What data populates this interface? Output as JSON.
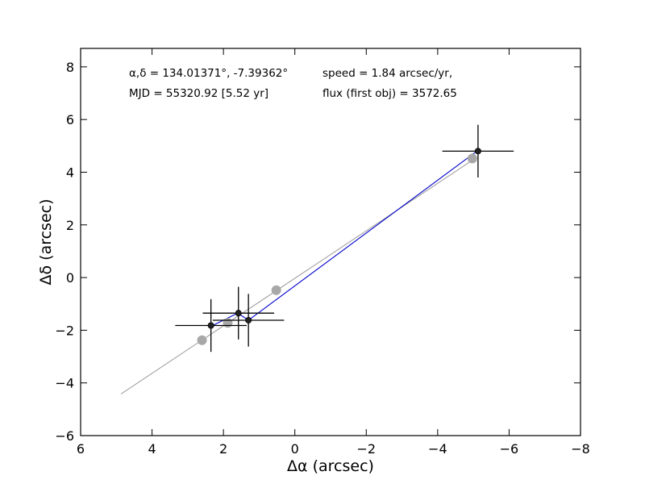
{
  "chart_data": {
    "type": "scatter",
    "title": "",
    "xlabel": "Δα (arcsec)",
    "ylabel": "Δδ (arcsec)",
    "xlim": [
      6,
      -8
    ],
    "ylim": [
      -6,
      8.7
    ],
    "xticks": [
      6,
      4,
      2,
      0,
      -2,
      -4,
      -6,
      -8
    ],
    "xtick_labels": [
      "6",
      "4",
      "2",
      "0",
      "−2",
      "−4",
      "−6",
      "−8"
    ],
    "yticks": [
      -6,
      -4,
      -2,
      0,
      2,
      4,
      6,
      8
    ],
    "ytick_labels": [
      "−6",
      "−4",
      "−2",
      "0",
      "2",
      "4",
      "6",
      "8"
    ],
    "grid": false,
    "legend": "none",
    "annotations": {
      "coords": "α,δ = 134.01371°, -7.39362°",
      "mjd": "MJD = 55320.92 [5.52 yr]",
      "speed": "speed = 1.84 arcsec/yr,",
      "flux": "flux (first obj) = 3572.65"
    },
    "fit_line": {
      "color": "#a0a0a0",
      "x": [
        4.87,
        -5.0
      ],
      "y": [
        -4.42,
        4.48
      ]
    },
    "model_points": {
      "color": "#a8a8a8",
      "x": [
        2.6,
        1.88,
        0.52,
        -4.97
      ],
      "y": [
        -2.38,
        -1.72,
        -0.48,
        4.52
      ]
    },
    "path_line": {
      "color": "#0000cc",
      "x": [
        2.3,
        1.6,
        1.3,
        -5.1
      ],
      "y": [
        -1.82,
        -1.35,
        -1.62,
        4.8
      ]
    },
    "observations": {
      "color": "#222222",
      "points": [
        {
          "x": 2.35,
          "y": -1.82,
          "xerr": 1.0,
          "yerr": 1.0
        },
        {
          "x": 1.58,
          "y": -1.35,
          "xerr": 1.0,
          "yerr": 1.0
        },
        {
          "x": 1.3,
          "y": -1.62,
          "xerr": 1.0,
          "yerr": 1.0
        },
        {
          "x": -5.13,
          "y": 4.8,
          "xerr": 1.0,
          "yerr": 1.0
        }
      ]
    }
  }
}
